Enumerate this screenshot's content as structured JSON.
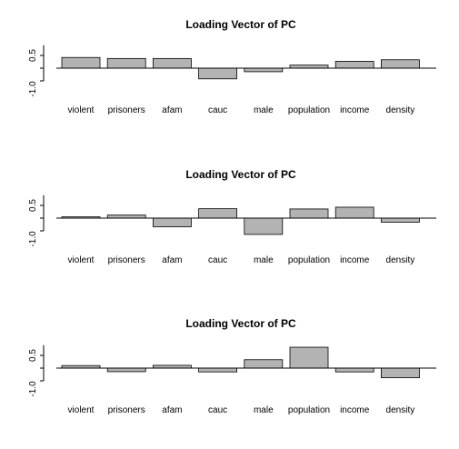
{
  "chart_data": [
    {
      "type": "bar",
      "title": "Loading Vector of PC",
      "categories": [
        "violent",
        "prisoners",
        "afam",
        "cauc",
        "male",
        "population",
        "income",
        "density"
      ],
      "values": [
        0.42,
        0.38,
        0.38,
        -0.42,
        -0.14,
        0.12,
        0.27,
        0.33
      ],
      "ylim": [
        -1.0,
        0.9
      ],
      "yticks": [
        "-1.0",
        "0.5"
      ],
      "grid": false,
      "bar_color": "#b3b3b3"
    },
    {
      "type": "bar",
      "title": "Loading Vector of PC",
      "categories": [
        "violent",
        "prisoners",
        "afam",
        "cauc",
        "male",
        "population",
        "income",
        "density"
      ],
      "values": [
        0.05,
        0.12,
        -0.34,
        0.37,
        -0.64,
        0.36,
        0.43,
        -0.16
      ],
      "ylim": [
        -1.0,
        0.9
      ],
      "yticks": [
        "-1.0",
        "0.5"
      ],
      "grid": false,
      "bar_color": "#b3b3b3"
    },
    {
      "type": "bar",
      "title": "Loading Vector of PC",
      "categories": [
        "violent",
        "prisoners",
        "afam",
        "cauc",
        "male",
        "population",
        "income",
        "density"
      ],
      "values": [
        0.1,
        -0.14,
        0.11,
        -0.15,
        0.33,
        0.82,
        -0.15,
        -0.38
      ],
      "ylim": [
        -1.0,
        0.9
      ],
      "yticks": [
        "-1.0",
        "0.5"
      ],
      "grid": false,
      "bar_color": "#b3b3b3"
    }
  ]
}
